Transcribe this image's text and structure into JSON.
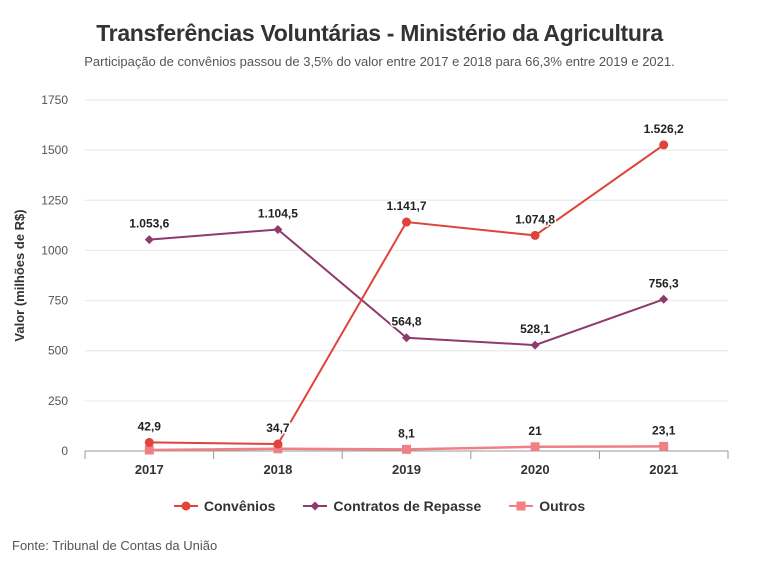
{
  "title": "Transferências Voluntárias - Ministério da Agricultura",
  "subtitle": "Participação de convênios passou de 3,5% do valor entre 2017 e 2018 para 66,3% entre 2019 e 2021.",
  "source": "Fonte: Tribunal de Contas da União",
  "chart_data": {
    "type": "line",
    "categories": [
      "2017",
      "2018",
      "2019",
      "2020",
      "2021"
    ],
    "ylabel": "Valor (milhões de R$)",
    "ylim": [
      0,
      1750
    ],
    "yticks": [
      0,
      250,
      500,
      750,
      1000,
      1250,
      1500,
      1750
    ],
    "ytick_labels": [
      "0",
      "250",
      "500",
      "750",
      "1000",
      "1250",
      "1500",
      "1750"
    ],
    "grid": true,
    "legend_position": "bottom-center",
    "series": [
      {
        "name": "Convênios",
        "color": "#e0433b",
        "marker": "circle",
        "values": [
          42.9,
          34.7,
          1141.7,
          1074.8,
          1526.2
        ],
        "labels": [
          "42,9",
          "34,7",
          "1.141,7",
          "1.074,8",
          "1.526,2"
        ]
      },
      {
        "name": "Contratos de Repasse",
        "color": "#8e3a6e",
        "marker": "diamond",
        "values": [
          1053.6,
          1104.5,
          564.8,
          528.1,
          756.3
        ],
        "labels": [
          "1.053,6",
          "1.104,5",
          "564,8",
          "528,1",
          "756,3"
        ]
      },
      {
        "name": "Outros",
        "color": "#f07f86",
        "marker": "square",
        "values": [
          5,
          11,
          8.1,
          21,
          23.1
        ],
        "labels": [
          "",
          "",
          "8,1",
          "21",
          "23,1"
        ]
      }
    ]
  }
}
